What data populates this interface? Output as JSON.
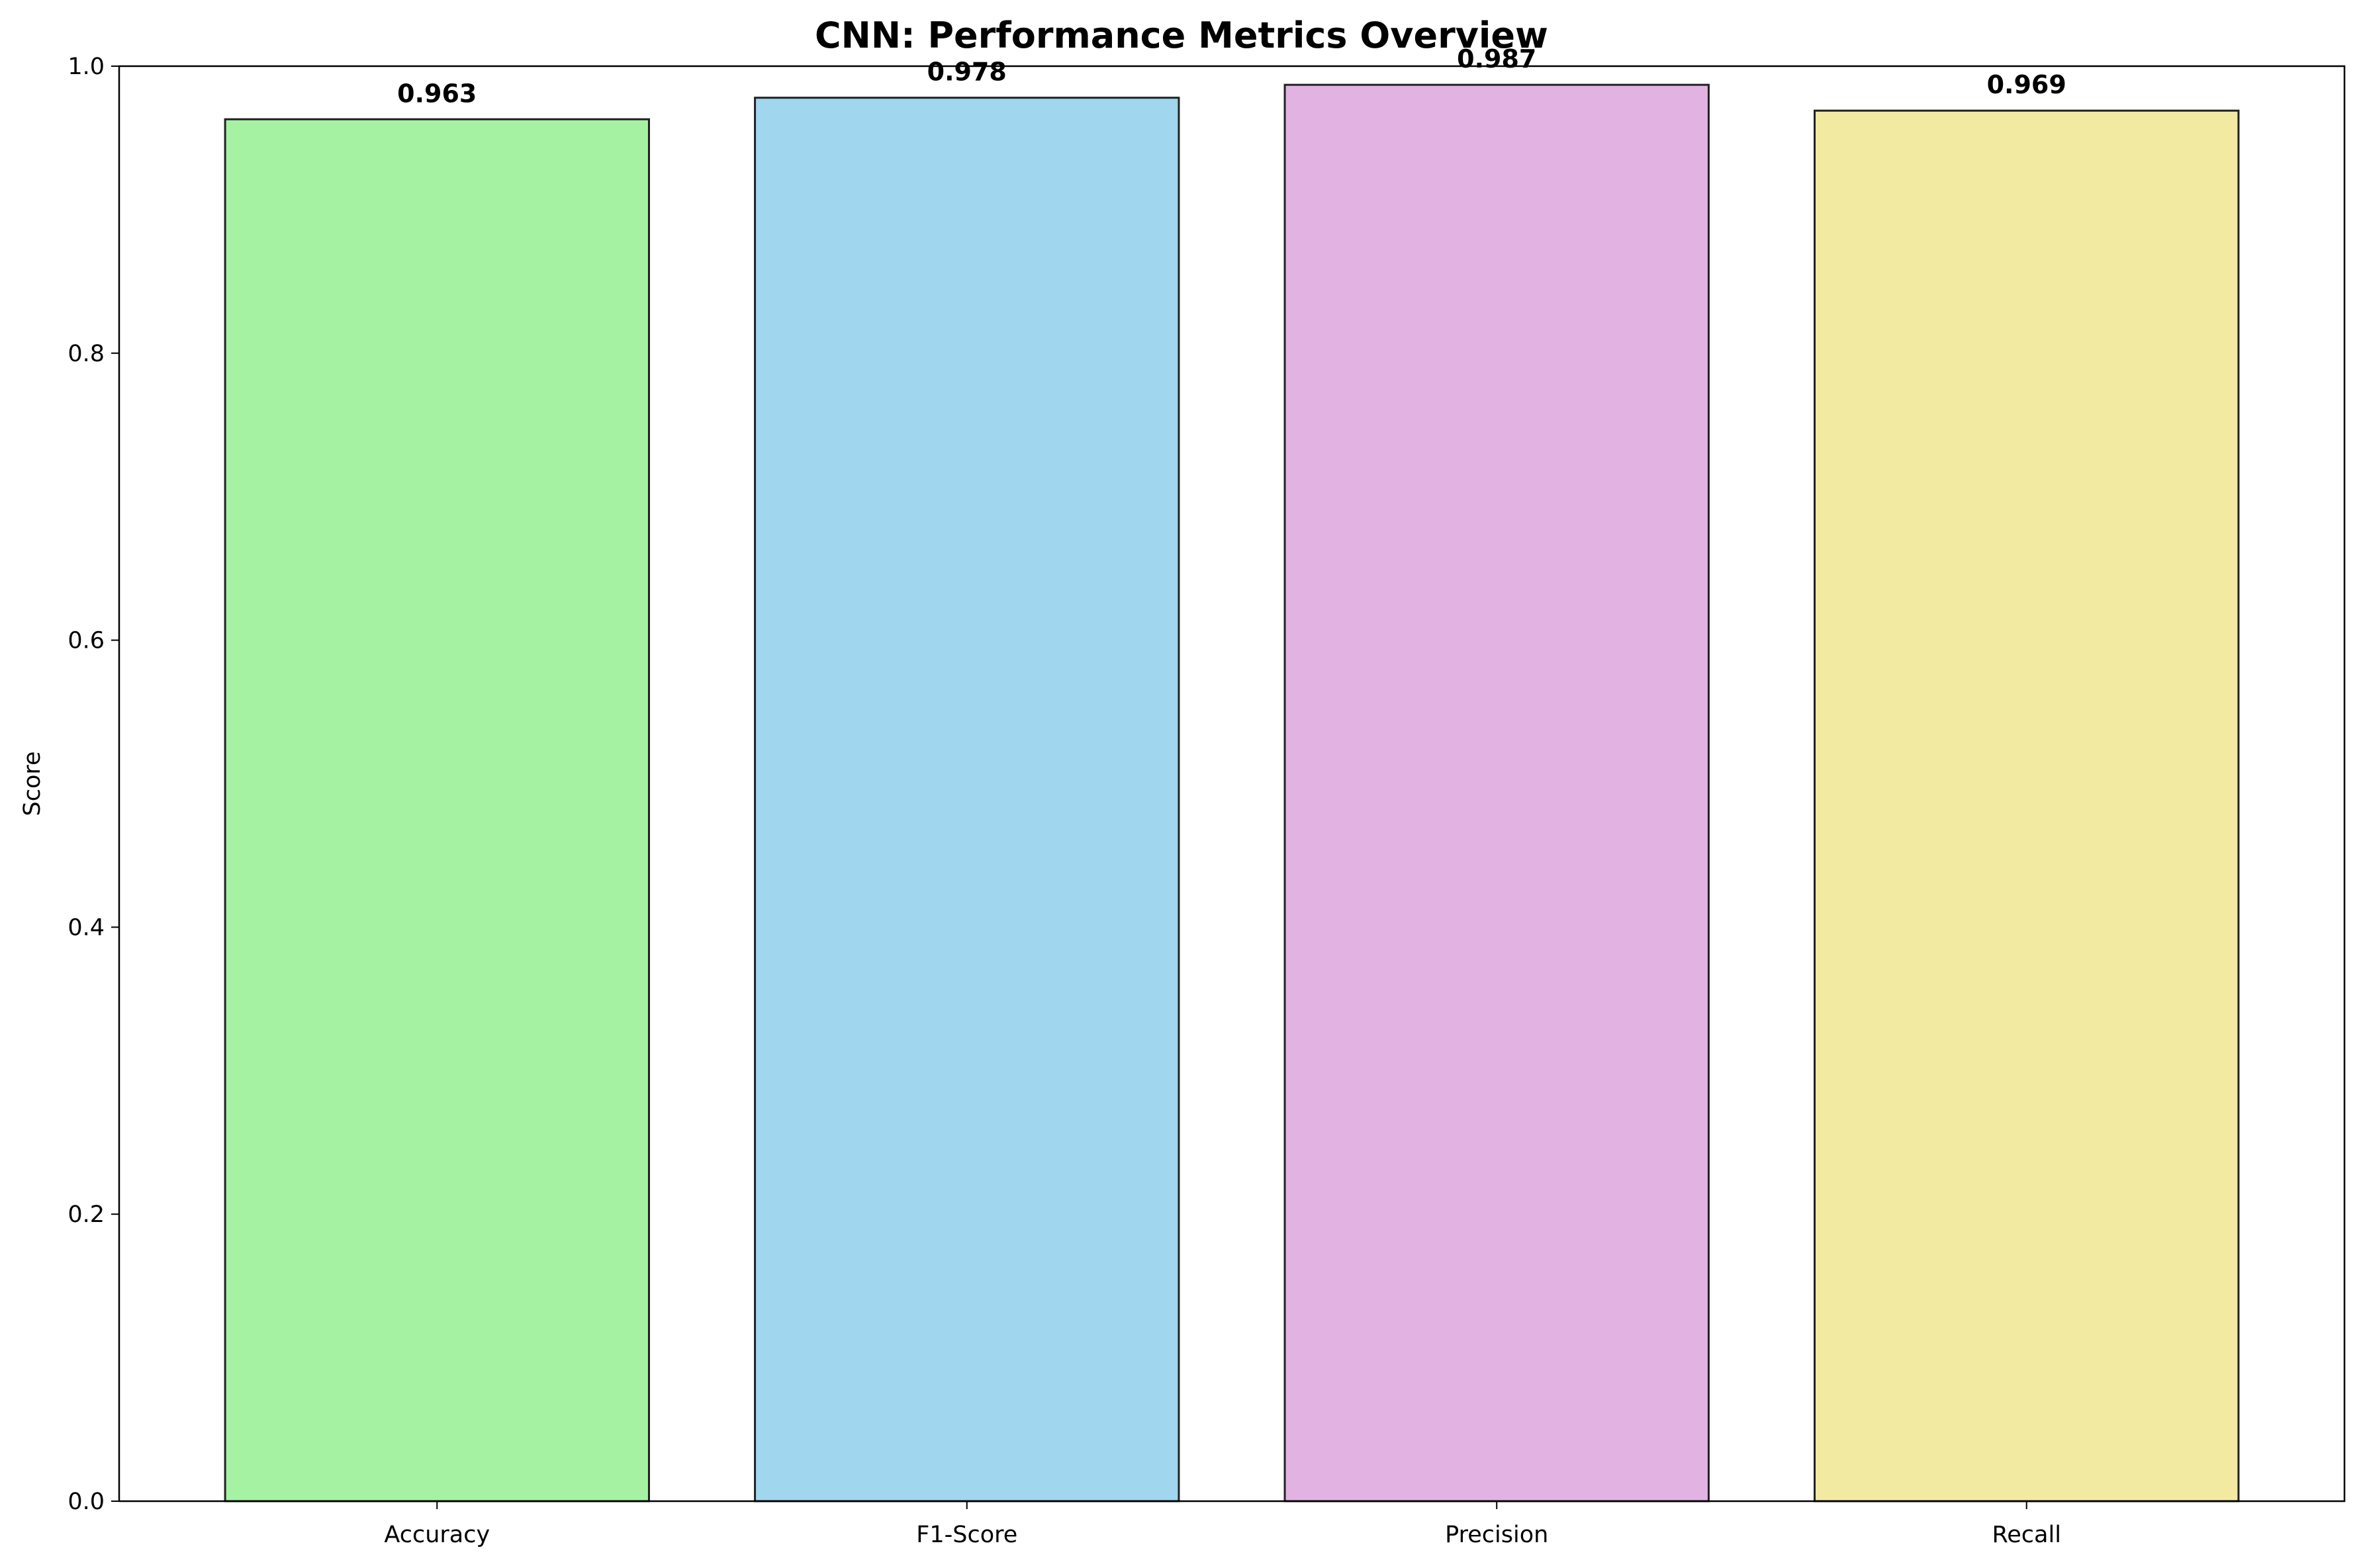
{
  "chart_data": {
    "type": "bar",
    "title": "CNN: Performance Metrics Overview",
    "xlabel": "",
    "ylabel": "Score",
    "ylim": [
      0,
      1.0
    ],
    "yticks": [
      "0.0",
      "0.2",
      "0.4",
      "0.6",
      "0.8",
      "1.0"
    ],
    "categories": [
      "Accuracy",
      "F1-Score",
      "Precision",
      "Recall"
    ],
    "values": [
      0.963,
      0.978,
      0.987,
      0.969
    ],
    "value_labels": [
      "0.963",
      "0.978",
      "0.987",
      "0.969"
    ],
    "colors": [
      "#a6f2a3",
      "#a0d6ee",
      "#e2b2e2",
      "#f3eaa2"
    ],
    "edge_color": "#222222",
    "grid": false,
    "legend": "none"
  }
}
